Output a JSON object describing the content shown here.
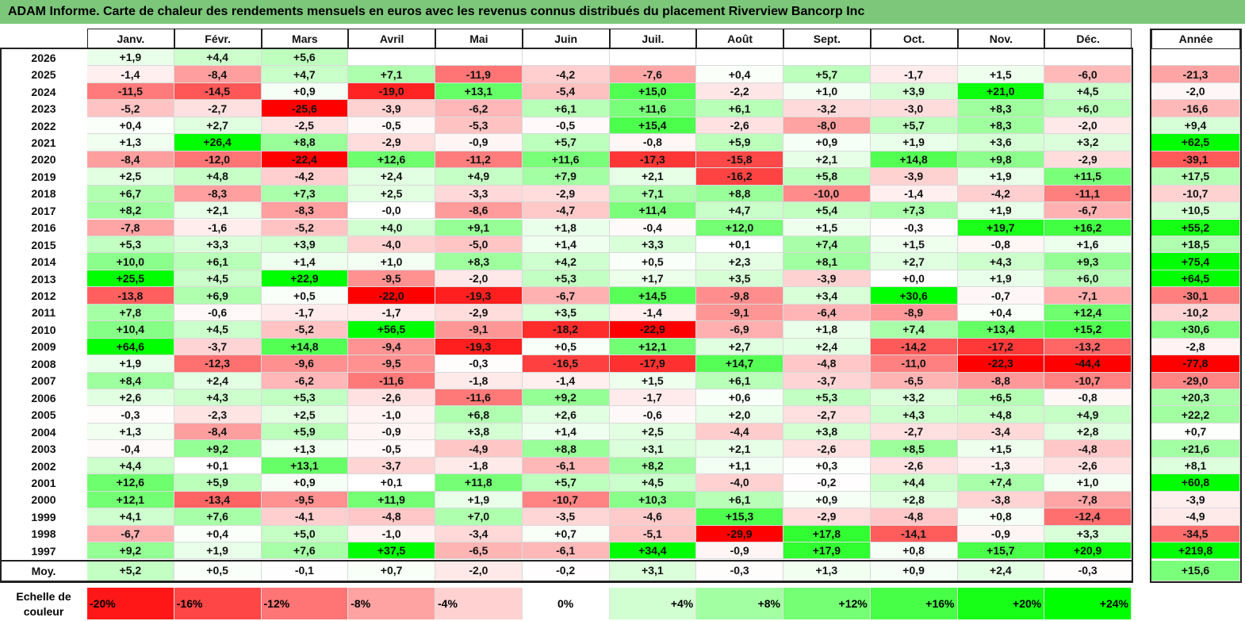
{
  "title": "ADAM Informe. Carte de chaleur des rendements mensuels en euros avec les revenus connus distribués du placement Riverview Bancorp Inc",
  "chart_data": {
    "type": "heatmap",
    "title": "ADAM Informe. Carte de chaleur des rendements mensuels en euros avec les revenus connus distribués du placement Riverview Bancorp Inc",
    "months": [
      "Janv.",
      "Févr.",
      "Mars",
      "Avril",
      "Mai",
      "Juin",
      "Juil.",
      "Août",
      "Sept.",
      "Oct.",
      "Nov.",
      "Déc."
    ],
    "year_header": "Année",
    "avg_label": "Moy.",
    "rows": [
      {
        "year": "2026",
        "m": [
          "+1,9",
          "+4,4",
          "+5,6",
          "",
          "",
          "",
          "",
          "",
          "",
          "",
          "",
          ""
        ],
        "total": ""
      },
      {
        "year": "2025",
        "m": [
          "-1,4",
          "-8,4",
          "+4,7",
          "+7,1",
          "-11,9",
          "-4,2",
          "-7,6",
          "+0,4",
          "+5,7",
          "-1,7",
          "+1,5",
          "-6,0"
        ],
        "total": "-21,3"
      },
      {
        "year": "2024",
        "m": [
          "-11,5",
          "-14,5",
          "+0,9",
          "-19,0",
          "+13,1",
          "-5,4",
          "+15,0",
          "-2,2",
          "+1,0",
          "+3,9",
          "+21,0",
          "+4,5"
        ],
        "total": "-2,0"
      },
      {
        "year": "2023",
        "m": [
          "-5,2",
          "-2,7",
          "-25,6",
          "-3,9",
          "-6,2",
          "+6,1",
          "+11,6",
          "+6,1",
          "-3,2",
          "-3,0",
          "+8,3",
          "+6,0"
        ],
        "total": "-16,6"
      },
      {
        "year": "2022",
        "m": [
          "+0,4",
          "+2,7",
          "-2,5",
          "-0,5",
          "-5,3",
          "-0,5",
          "+15,4",
          "-2,6",
          "-8,0",
          "+5,7",
          "+8,3",
          "-2,0"
        ],
        "total": "+9,4"
      },
      {
        "year": "2021",
        "m": [
          "+1,3",
          "+26,4",
          "+8,8",
          "-2,9",
          "-0,9",
          "+5,7",
          "-0,8",
          "+5,9",
          "+0,9",
          "+1,9",
          "+3,6",
          "+3,2"
        ],
        "total": "+62,5"
      },
      {
        "year": "2020",
        "m": [
          "-8,4",
          "-12,0",
          "-22,4",
          "+12,6",
          "-11,2",
          "+11,6",
          "-17,3",
          "-15,8",
          "+2,1",
          "+14,8",
          "+9,8",
          "-2,9"
        ],
        "total": "-39,1"
      },
      {
        "year": "2019",
        "m": [
          "+2,5",
          "+4,8",
          "-4,2",
          "+2,4",
          "+4,9",
          "+7,9",
          "+2,1",
          "-16,2",
          "+5,8",
          "-3,9",
          "+1,9",
          "+11,5"
        ],
        "total": "+17,5"
      },
      {
        "year": "2018",
        "m": [
          "+6,7",
          "-8,3",
          "+7,3",
          "+2,5",
          "-3,3",
          "-2,9",
          "+7,1",
          "+8,8",
          "-10,0",
          "-1,4",
          "-4,2",
          "-11,1"
        ],
        "total": "-10,7"
      },
      {
        "year": "2017",
        "m": [
          "+8,2",
          "+2,1",
          "-8,3",
          "-0,0",
          "-8,6",
          "-4,7",
          "+11,4",
          "+4,7",
          "+5,4",
          "+7,3",
          "+1,9",
          "-6,7"
        ],
        "total": "+10,5"
      },
      {
        "year": "2016",
        "m": [
          "-7,8",
          "-1,6",
          "-5,2",
          "+4,0",
          "+9,1",
          "+1,8",
          "-0,4",
          "+12,0",
          "+1,5",
          "-0,3",
          "+19,7",
          "+16,2"
        ],
        "total": "+55,2"
      },
      {
        "year": "2015",
        "m": [
          "+5,3",
          "+3,3",
          "+3,9",
          "-4,0",
          "-5,0",
          "+1,4",
          "+3,3",
          "+0,1",
          "+7,4",
          "+1,5",
          "-0,8",
          "+1,6"
        ],
        "total": "+18,5"
      },
      {
        "year": "2014",
        "m": [
          "+10,0",
          "+6,1",
          "+1,4",
          "+1,0",
          "+8,3",
          "+4,2",
          "+0,5",
          "+2,3",
          "+8,1",
          "+2,7",
          "+4,3",
          "+9,3"
        ],
        "total": "+75,4"
      },
      {
        "year": "2013",
        "m": [
          "+25,5",
          "+4,5",
          "+22,9",
          "-9,5",
          "-2,0",
          "+5,3",
          "+1,7",
          "+3,5",
          "-3,9",
          "+0,0",
          "+1,9",
          "+6,0"
        ],
        "total": "+64,5"
      },
      {
        "year": "2012",
        "m": [
          "-13,8",
          "+6,9",
          "+0,5",
          "-22,0",
          "-19,3",
          "-6,7",
          "+14,5",
          "-9,8",
          "+3,4",
          "+30,6",
          "-0,7",
          "-7,1"
        ],
        "total": "-30,1"
      },
      {
        "year": "2011",
        "m": [
          "+7,8",
          "-0,6",
          "-1,7",
          "-1,7",
          "-2,9",
          "+3,5",
          "-1,4",
          "-9,1",
          "-6,4",
          "-8,9",
          "+0,4",
          "+12,4"
        ],
        "total": "-10,2"
      },
      {
        "year": "2010",
        "m": [
          "+10,4",
          "+4,5",
          "-5,2",
          "+56,5",
          "-9,1",
          "-18,2",
          "-22,9",
          "-6,9",
          "+1,8",
          "+7,4",
          "+13,4",
          "+15,2"
        ],
        "total": "+30,6"
      },
      {
        "year": "2009",
        "m": [
          "+64,6",
          "-3,7",
          "+14,8",
          "-9,4",
          "-19,3",
          "+0,5",
          "+12,1",
          "+2,7",
          "+2,4",
          "-14,2",
          "-17,2",
          "-13,2"
        ],
        "total": "-2,8"
      },
      {
        "year": "2008",
        "m": [
          "+1,9",
          "-12,3",
          "-9,6",
          "-9,5",
          "-0,3",
          "-16,5",
          "-17,9",
          "+14,7",
          "-4,8",
          "-11,0",
          "-22,3",
          "-44,4"
        ],
        "total": "-77,8"
      },
      {
        "year": "2007",
        "m": [
          "+8,4",
          "+2,4",
          "-6,2",
          "-11,6",
          "-1,8",
          "-1,4",
          "+1,5",
          "+6,1",
          "-3,7",
          "-6,5",
          "-8,8",
          "-10,7"
        ],
        "total": "-29,0"
      },
      {
        "year": "2006",
        "m": [
          "+2,6",
          "+4,3",
          "+5,3",
          "-2,6",
          "-11,6",
          "+9,2",
          "-1,7",
          "+0,6",
          "+5,3",
          "+3,2",
          "+6,5",
          "-0,8"
        ],
        "total": "+20,3"
      },
      {
        "year": "2005",
        "m": [
          "-0,3",
          "-2,3",
          "+2,5",
          "-1,0",
          "+6,8",
          "+2,6",
          "-0,6",
          "+2,0",
          "-2,7",
          "+4,3",
          "+4,8",
          "+4,9"
        ],
        "total": "+22,2"
      },
      {
        "year": "2004",
        "m": [
          "+1,3",
          "-8,4",
          "+5,9",
          "-0,9",
          "+3,8",
          "+1,4",
          "+2,5",
          "-4,4",
          "+3,8",
          "-2,7",
          "-3,4",
          "+2,8"
        ],
        "total": "+0,7"
      },
      {
        "year": "2003",
        "m": [
          "-0,4",
          "+9,2",
          "+1,3",
          "-0,5",
          "-4,9",
          "+8,8",
          "+3,1",
          "+2,1",
          "-2,6",
          "+8,5",
          "+1,5",
          "-4,8"
        ],
        "total": "+21,6"
      },
      {
        "year": "2002",
        "m": [
          "+4,4",
          "+0,1",
          "+13,1",
          "-3,7",
          "-1,8",
          "-6,1",
          "+8,2",
          "+1,1",
          "+0,3",
          "-2,6",
          "-1,3",
          "-2,6"
        ],
        "total": "+8,1"
      },
      {
        "year": "2001",
        "m": [
          "+12,6",
          "+5,9",
          "+0,9",
          "+0,1",
          "+11,8",
          "+5,7",
          "+4,5",
          "-4,0",
          "-0,2",
          "+4,4",
          "+7,4",
          "+1,0"
        ],
        "total": "+60,8"
      },
      {
        "year": "2000",
        "m": [
          "+12,1",
          "-13,4",
          "-9,5",
          "+11,9",
          "+1,9",
          "-10,7",
          "+10,3",
          "+6,1",
          "+0,9",
          "+2,8",
          "-3,8",
          "-7,8"
        ],
        "total": "-3,9"
      },
      {
        "year": "1999",
        "m": [
          "+4,1",
          "+7,6",
          "-4,1",
          "-4,8",
          "+7,0",
          "-3,5",
          "-4,6",
          "+15,3",
          "-2,9",
          "-4,8",
          "+0,8",
          "-12,4"
        ],
        "total": "-4,9"
      },
      {
        "year": "1998",
        "m": [
          "-6,7",
          "+0,4",
          "+5,0",
          "-1,0",
          "-3,4",
          "+0,7",
          "-5,1",
          "-29,9",
          "+17,8",
          "-14,1",
          "-0,9",
          "+3,3"
        ],
        "total": "-34,5"
      },
      {
        "year": "1997",
        "m": [
          "+9,2",
          "+1,9",
          "+7,6",
          "+37,5",
          "-6,5",
          "-6,1",
          "+34,4",
          "-0,9",
          "+17,9",
          "+0,8",
          "+15,7",
          "+20,9"
        ],
        "total": "+219,8"
      }
    ],
    "average": {
      "m": [
        "+5,2",
        "+0,5",
        "-0,1",
        "+0,7",
        "-2,0",
        "-0,2",
        "+3,1",
        "-0,3",
        "+1,3",
        "+0,9",
        "+2,4",
        "-0,3"
      ],
      "total": "+15,6"
    },
    "scale_label": [
      "Echelle de",
      "couleur"
    ],
    "scale": [
      "-20%",
      "-16%",
      "-12%",
      "-8%",
      "-4%",
      "0%",
      "+4%",
      "+8%",
      "+12%",
      "+16%",
      "+20%",
      "+24%"
    ],
    "colors": {
      "negative": "#ff0000",
      "neutral": "#ffffff",
      "positive": "#00ff00",
      "title_bg": "#7cc77a"
    }
  }
}
